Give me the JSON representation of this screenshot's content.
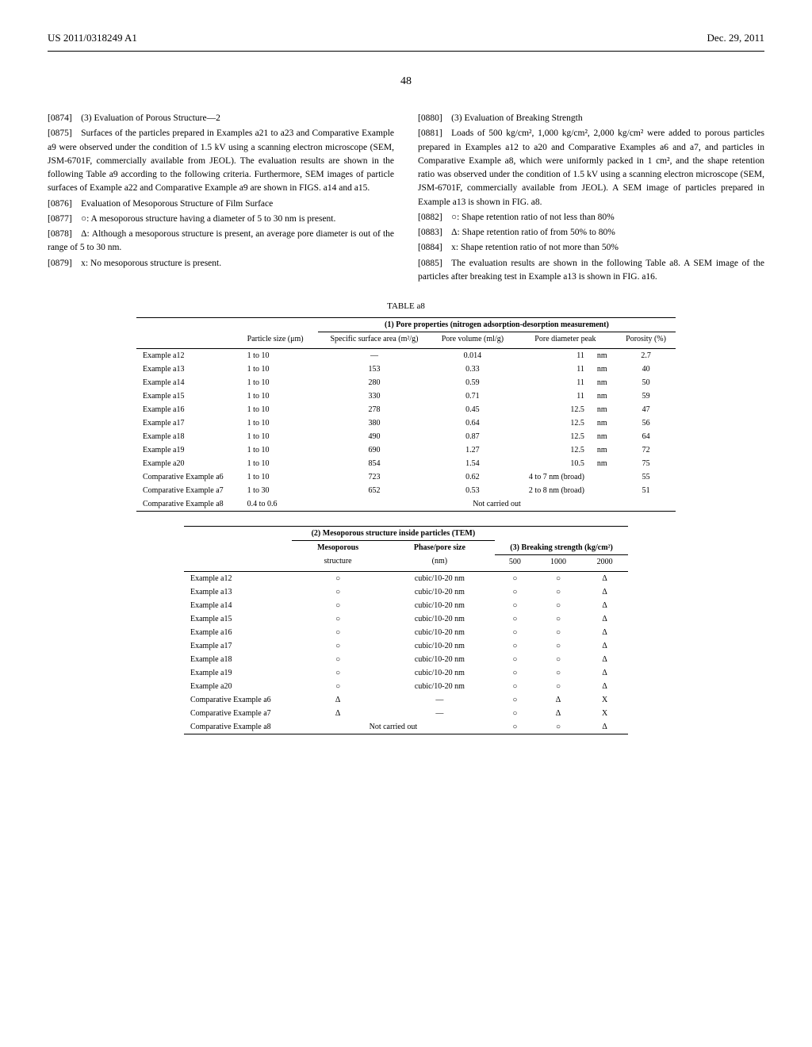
{
  "header": {
    "left": "US 2011/0318249 A1",
    "right": "Dec. 29, 2011"
  },
  "page_number": "48",
  "left_column": {
    "p0874": "[0874] (3) Evaluation of Porous Structure—2",
    "p0875": "[0875] Surfaces of the particles prepared in Examples a21 to a23 and Comparative Example a9 were observed under the condition of 1.5 kV using a scanning electron microscope (SEM, JSM-6701F, commercially available from JEOL). The evaluation results are shown in the following Table a9 according to the following criteria. Furthermore, SEM images of particle surfaces of Example a22 and Comparative Example a9 are shown in FIGS. a14 and a15.",
    "p0876": "[0876] Evaluation of Mesoporous Structure of Film Surface",
    "p0877": "[0877] ○: A mesoporous structure having a diameter of 5 to 30 nm is present.",
    "p0878": "[0878] Δ: Although a mesoporous structure is present, an average pore diameter is out of the range of 5 to 30 nm.",
    "p0879": "[0879] x: No mesoporous structure is present."
  },
  "right_column": {
    "p0880": "[0880] (3) Evaluation of Breaking Strength",
    "p0881": "[0881] Loads of 500 kg/cm², 1,000 kg/cm², 2,000 kg/cm² were added to porous particles prepared in Examples a12 to a20 and Comparative Examples a6 and a7, and particles in Comparative Example a8, which were uniformly packed in 1 cm², and the shape retention ratio was observed under the condition of 1.5 kV using a scanning electron microscope (SEM, JSM-6701F, commercially available from JEOL). A SEM image of particles prepared in Example a13 is shown in FIG. a8.",
    "p0882": "[0882] ○: Shape retention ratio of not less than 80%",
    "p0883": "[0883] Δ: Shape retention ratio of from 50% to 80%",
    "p0884": "[0884] x: Shape retention ratio of not more than 50%",
    "p0885": "[0885] The evaluation results are shown in the following Table a8. A SEM image of the particles after breaking test in Example a13 is shown in FIG. a16."
  },
  "table_a8_caption": "TABLE a8",
  "table1": {
    "group_header": "(1) Pore properties (nitrogen adsorption-desorption measurement)",
    "headers": {
      "c1": "",
      "c2": "Particle size (μm)",
      "c3": "Specific surface area (m²/g)",
      "c4": "Pore volume (ml/g)",
      "c5": "Pore diameter peak",
      "c6": "Porosity (%)"
    },
    "rows": [
      {
        "c1": "Example a12",
        "c2": "1 to 10",
        "c3": "—",
        "c4": "0.014",
        "c5": "11",
        "c5u": "nm",
        "c6": "2.7"
      },
      {
        "c1": "Example a13",
        "c2": "1 to 10",
        "c3": "153",
        "c4": "0.33",
        "c5": "11",
        "c5u": "nm",
        "c6": "40"
      },
      {
        "c1": "Example a14",
        "c2": "1 to 10",
        "c3": "280",
        "c4": "0.59",
        "c5": "11",
        "c5u": "nm",
        "c6": "50"
      },
      {
        "c1": "Example a15",
        "c2": "1 to 10",
        "c3": "330",
        "c4": "0.71",
        "c5": "11",
        "c5u": "nm",
        "c6": "59"
      },
      {
        "c1": "Example a16",
        "c2": "1 to 10",
        "c3": "278",
        "c4": "0.45",
        "c5": "12.5",
        "c5u": "nm",
        "c6": "47"
      },
      {
        "c1": "Example a17",
        "c2": "1 to 10",
        "c3": "380",
        "c4": "0.64",
        "c5": "12.5",
        "c5u": "nm",
        "c6": "56"
      },
      {
        "c1": "Example a18",
        "c2": "1 to 10",
        "c3": "490",
        "c4": "0.87",
        "c5": "12.5",
        "c5u": "nm",
        "c6": "64"
      },
      {
        "c1": "Example a19",
        "c2": "1 to 10",
        "c3": "690",
        "c4": "1.27",
        "c5": "12.5",
        "c5u": "nm",
        "c6": "72"
      },
      {
        "c1": "Example a20",
        "c2": "1 to 10",
        "c3": "854",
        "c4": "1.54",
        "c5": "10.5",
        "c5u": "nm",
        "c6": "75"
      },
      {
        "c1": "Comparative Example a6",
        "c2": "1 to 10",
        "c3": "723",
        "c4": "0.62",
        "c5": "4 to 7 nm (broad)",
        "c5u": "",
        "c6": "55"
      },
      {
        "c1": "Comparative Example a7",
        "c2": "1 to 30",
        "c3": "652",
        "c4": "0.53",
        "c5": "2 to 8 nm (broad)",
        "c5u": "",
        "c6": "51"
      },
      {
        "c1": "Comparative Example a8",
        "c2": "0.4 to 0.6",
        "c3": "",
        "c4": "",
        "c5": "Not carried out",
        "c5u": "",
        "c6": ""
      }
    ]
  },
  "table2": {
    "group_header1": "(2) Mesoporous structure inside particles (TEM)",
    "group_header2": "(3) Breaking strength (kg/cm²)",
    "headers": {
      "c1": "",
      "c2": "Mesoporous structure",
      "c3": "Phase/pore size (nm)",
      "c4": "500",
      "c5": "1000",
      "c6": "2000"
    },
    "rows": [
      {
        "c1": "Example a12",
        "c2": "○",
        "c3": "cubic/10-20 nm",
        "c4": "○",
        "c5": "○",
        "c6": "Δ"
      },
      {
        "c1": "Example a13",
        "c2": "○",
        "c3": "cubic/10-20 nm",
        "c4": "○",
        "c5": "○",
        "c6": "Δ"
      },
      {
        "c1": "Example a14",
        "c2": "○",
        "c3": "cubic/10-20 nm",
        "c4": "○",
        "c5": "○",
        "c6": "Δ"
      },
      {
        "c1": "Example a15",
        "c2": "○",
        "c3": "cubic/10-20 nm",
        "c4": "○",
        "c5": "○",
        "c6": "Δ"
      },
      {
        "c1": "Example a16",
        "c2": "○",
        "c3": "cubic/10-20 nm",
        "c4": "○",
        "c5": "○",
        "c6": "Δ"
      },
      {
        "c1": "Example a17",
        "c2": "○",
        "c3": "cubic/10-20 nm",
        "c4": "○",
        "c5": "○",
        "c6": "Δ"
      },
      {
        "c1": "Example a18",
        "c2": "○",
        "c3": "cubic/10-20 nm",
        "c4": "○",
        "c5": "○",
        "c6": "Δ"
      },
      {
        "c1": "Example a19",
        "c2": "○",
        "c3": "cubic/10-20 nm",
        "c4": "○",
        "c5": "○",
        "c6": "Δ"
      },
      {
        "c1": "Example a20",
        "c2": "○",
        "c3": "cubic/10-20 nm",
        "c4": "○",
        "c5": "○",
        "c6": "Δ"
      },
      {
        "c1": "Comparative Example a6",
        "c2": "Δ",
        "c3": "—",
        "c4": "○",
        "c5": "Δ",
        "c6": "X"
      },
      {
        "c1": "Comparative Example a7",
        "c2": "Δ",
        "c3": "—",
        "c4": "○",
        "c5": "Δ",
        "c6": "X"
      },
      {
        "c1": "Comparative Example a8",
        "c2": "",
        "c3": "Not carried out",
        "c4": "○",
        "c5": "○",
        "c6": "Δ"
      }
    ]
  }
}
